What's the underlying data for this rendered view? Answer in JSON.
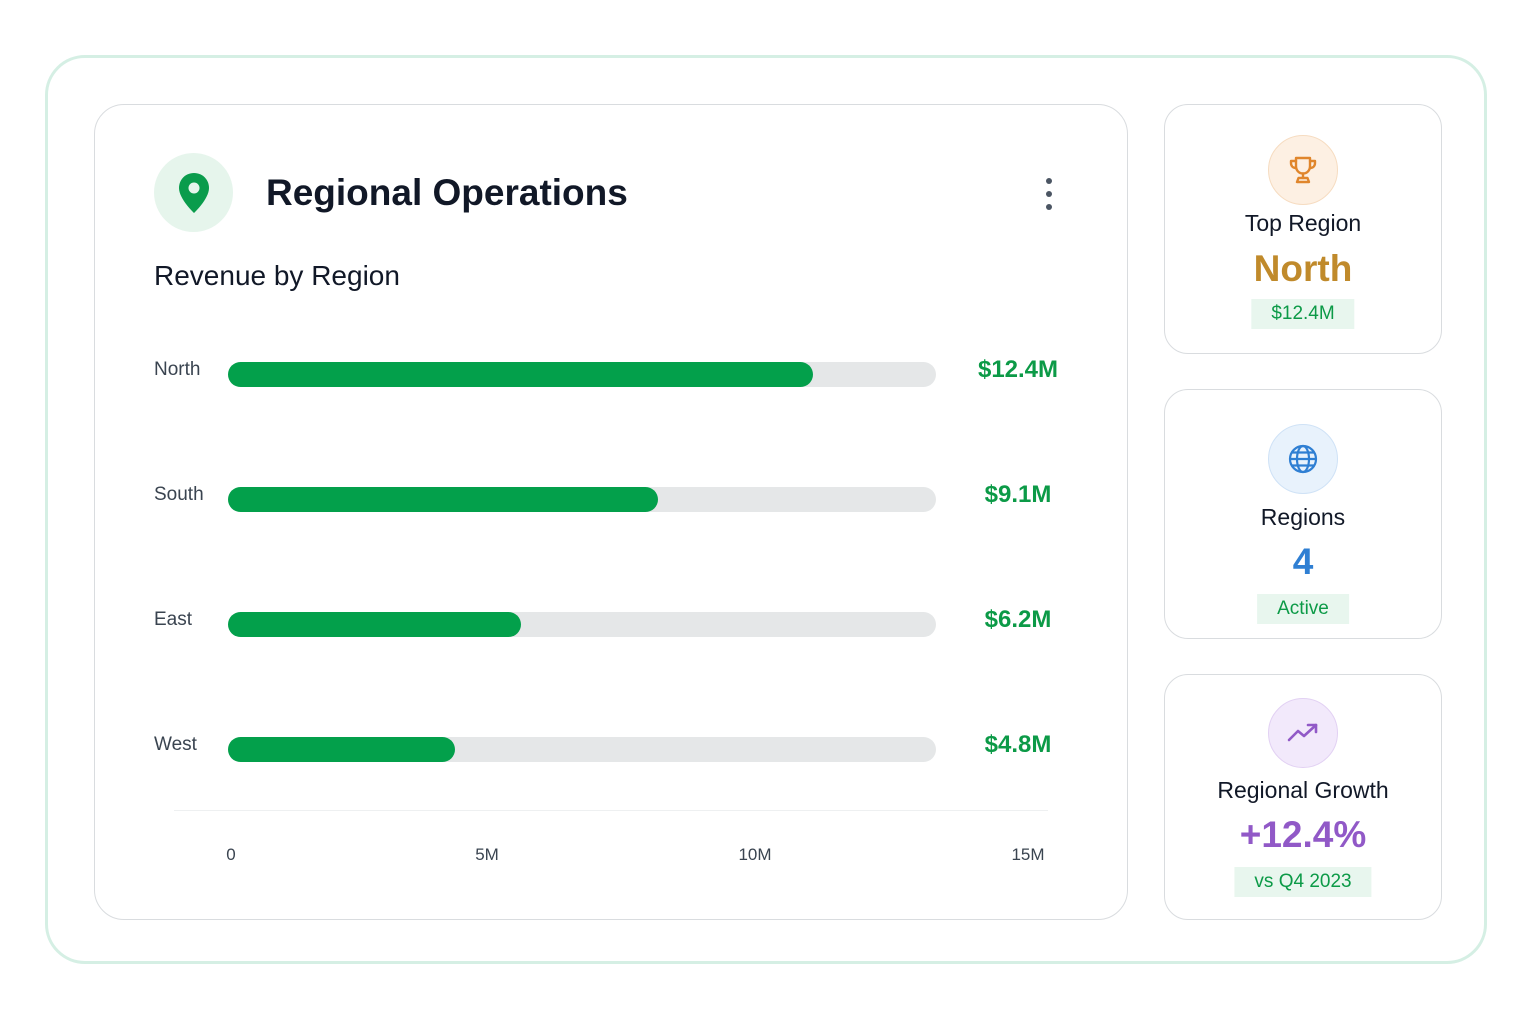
{
  "header": {
    "title": "Regional Operations",
    "subtitle": "Revenue by Region",
    "location_icon": "location-pin-icon",
    "menu_icon": "more-vertical-icon"
  },
  "colors": {
    "accent": "#03a04b",
    "value_green": "#0c9a47",
    "gold": "#c08a2b",
    "blue": "#2f7fd3",
    "purple": "#9159c7",
    "track": "#e5e7e8"
  },
  "chart_data": {
    "type": "bar",
    "orientation": "horizontal",
    "categories": [
      "North",
      "South",
      "East",
      "West"
    ],
    "values": [
      12.4,
      9.1,
      6.2,
      4.8
    ],
    "value_labels": [
      "$12.4M",
      "$9.1M",
      "$6.2M",
      "$4.8M"
    ],
    "unit": "M",
    "xlim": [
      0,
      15
    ],
    "x_ticks": [
      "0",
      "5M",
      "10M",
      "15M"
    ],
    "title": "Revenue by Region",
    "xlabel": "",
    "ylabel": ""
  },
  "stats": [
    {
      "icon": "trophy-icon",
      "label": "Top Region",
      "value": "North",
      "badge": "$12.4M"
    },
    {
      "icon": "globe-icon",
      "label": "Regions",
      "value": "4",
      "badge": "Active"
    },
    {
      "icon": "trending-up-icon",
      "label": "Regional Growth",
      "value": "+12.4%",
      "badge": "vs Q4 2023"
    }
  ]
}
